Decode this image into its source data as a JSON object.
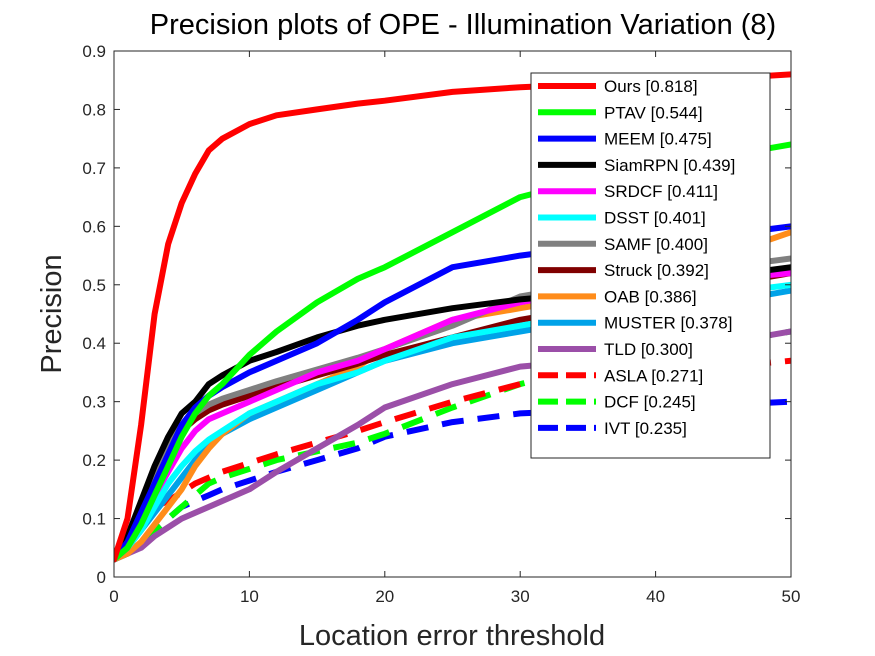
{
  "chart_data": {
    "type": "line",
    "title": "Precision plots of OPE - Illumination Variation (8)",
    "xlabel": "Location error threshold",
    "ylabel": "Precision",
    "xlim": [
      0,
      50
    ],
    "ylim": [
      0,
      0.9
    ],
    "xticks": [
      0,
      10,
      20,
      30,
      40,
      50
    ],
    "yticks": [
      0,
      0.1,
      0.2,
      0.3,
      0.4,
      0.5,
      0.6,
      0.7,
      0.8,
      0.9
    ],
    "xtick_labels": [
      "0",
      "10",
      "20",
      "30",
      "40",
      "50"
    ],
    "ytick_labels": [
      "0",
      "0.1",
      "0.2",
      "0.3",
      "0.4",
      "0.5",
      "0.6",
      "0.7",
      "0.8",
      "0.9"
    ],
    "grid": false,
    "legend_position": "top-right",
    "x": [
      0,
      1,
      2,
      3,
      4,
      5,
      6,
      7,
      8,
      10,
      12,
      15,
      18,
      20,
      25,
      30,
      35,
      40,
      45,
      50
    ],
    "series": [
      {
        "name": "Ours [0.818]",
        "color": "#ff0000",
        "dash": "solid",
        "values": [
          0.03,
          0.1,
          0.26,
          0.45,
          0.57,
          0.64,
          0.69,
          0.73,
          0.75,
          0.775,
          0.79,
          0.8,
          0.81,
          0.815,
          0.83,
          0.838,
          0.843,
          0.848,
          0.853,
          0.86
        ]
      },
      {
        "name": "PTAV [0.544]",
        "color": "#00ff00",
        "dash": "solid",
        "values": [
          0.03,
          0.05,
          0.09,
          0.14,
          0.19,
          0.24,
          0.28,
          0.31,
          0.33,
          0.38,
          0.42,
          0.47,
          0.51,
          0.53,
          0.59,
          0.65,
          0.68,
          0.7,
          0.72,
          0.74
        ]
      },
      {
        "name": "MEEM [0.475]",
        "color": "#0000ff",
        "dash": "solid",
        "values": [
          0.03,
          0.06,
          0.11,
          0.16,
          0.21,
          0.26,
          0.29,
          0.31,
          0.325,
          0.35,
          0.37,
          0.4,
          0.44,
          0.47,
          0.53,
          0.55,
          0.565,
          0.575,
          0.585,
          0.6
        ]
      },
      {
        "name": "SiamRPN [0.439]",
        "color": "#000000",
        "dash": "solid",
        "values": [
          0.03,
          0.07,
          0.13,
          0.19,
          0.24,
          0.28,
          0.3,
          0.33,
          0.345,
          0.37,
          0.385,
          0.41,
          0.43,
          0.44,
          0.46,
          0.475,
          0.485,
          0.5,
          0.515,
          0.53
        ]
      },
      {
        "name": "SRDCF [0.411]",
        "color": "#ff00ff",
        "dash": "solid",
        "values": [
          0.03,
          0.05,
          0.09,
          0.14,
          0.18,
          0.22,
          0.25,
          0.27,
          0.28,
          0.3,
          0.32,
          0.35,
          0.37,
          0.39,
          0.44,
          0.47,
          0.49,
          0.5,
          0.51,
          0.52
        ]
      },
      {
        "name": "DSST [0.401]",
        "color": "#00ffff",
        "dash": "solid",
        "values": [
          0.03,
          0.05,
          0.08,
          0.12,
          0.16,
          0.19,
          0.215,
          0.235,
          0.25,
          0.28,
          0.3,
          0.33,
          0.35,
          0.37,
          0.41,
          0.43,
          0.45,
          0.47,
          0.485,
          0.5
        ]
      },
      {
        "name": "SAMF [0.400]",
        "color": "#808080",
        "dash": "solid",
        "values": [
          0.03,
          0.06,
          0.12,
          0.17,
          0.22,
          0.26,
          0.28,
          0.295,
          0.305,
          0.32,
          0.335,
          0.355,
          0.375,
          0.39,
          0.43,
          0.48,
          0.5,
          0.52,
          0.53,
          0.545
        ]
      },
      {
        "name": "Struck [0.392]",
        "color": "#800000",
        "dash": "solid",
        "values": [
          0.03,
          0.06,
          0.11,
          0.16,
          0.21,
          0.25,
          0.27,
          0.285,
          0.295,
          0.31,
          0.325,
          0.345,
          0.365,
          0.38,
          0.41,
          0.44,
          0.46,
          0.48,
          0.5,
          0.52
        ]
      },
      {
        "name": "OAB [0.386]",
        "color": "#ff8c1a",
        "dash": "solid",
        "values": [
          0.03,
          0.04,
          0.06,
          0.09,
          0.12,
          0.15,
          0.19,
          0.22,
          0.245,
          0.28,
          0.3,
          0.33,
          0.36,
          0.39,
          0.44,
          0.46,
          0.48,
          0.51,
          0.55,
          0.59
        ]
      },
      {
        "name": "MUSTER [0.378]",
        "color": "#00a2e8",
        "dash": "solid",
        "values": [
          0.03,
          0.05,
          0.08,
          0.11,
          0.14,
          0.17,
          0.2,
          0.225,
          0.245,
          0.27,
          0.29,
          0.32,
          0.35,
          0.37,
          0.4,
          0.42,
          0.44,
          0.46,
          0.47,
          0.49
        ]
      },
      {
        "name": "TLD [0.300]",
        "color": "#9b4fa8",
        "dash": "solid",
        "values": [
          0.03,
          0.04,
          0.05,
          0.07,
          0.085,
          0.1,
          0.11,
          0.12,
          0.13,
          0.15,
          0.18,
          0.22,
          0.26,
          0.29,
          0.33,
          0.36,
          0.37,
          0.38,
          0.4,
          0.42
        ]
      },
      {
        "name": "ASLA [0.271]",
        "color": "#ff0000",
        "dash": "dashed",
        "values": [
          0.03,
          0.05,
          0.08,
          0.12,
          0.13,
          0.145,
          0.16,
          0.17,
          0.18,
          0.195,
          0.21,
          0.23,
          0.25,
          0.265,
          0.3,
          0.33,
          0.345,
          0.35,
          0.36,
          0.37
        ]
      },
      {
        "name": "DCF [0.245]",
        "color": "#00ff00",
        "dash": "dashed",
        "values": [
          0.03,
          0.04,
          0.06,
          0.08,
          0.1,
          0.12,
          0.14,
          0.16,
          0.17,
          0.185,
          0.2,
          0.215,
          0.23,
          0.245,
          0.29,
          0.33,
          0.36,
          0.38,
          0.4,
          0.42
        ]
      },
      {
        "name": "IVT [0.235]",
        "color": "#0000ff",
        "dash": "dashed",
        "values": [
          0.03,
          0.04,
          0.06,
          0.08,
          0.1,
          0.12,
          0.13,
          0.14,
          0.15,
          0.165,
          0.18,
          0.2,
          0.22,
          0.24,
          0.265,
          0.28,
          0.285,
          0.29,
          0.295,
          0.3
        ]
      }
    ]
  }
}
